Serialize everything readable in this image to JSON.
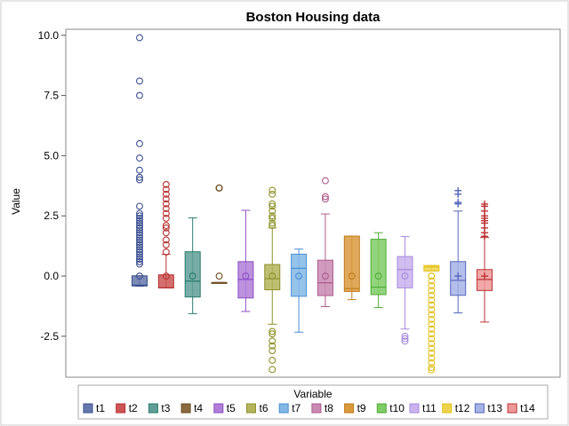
{
  "chart_data": {
    "type": "box",
    "title": "Boston Housing data",
    "ylabel": "Value",
    "xlabel": "",
    "ylim": [
      -4.2,
      10.25
    ],
    "yticks": [
      -2.5,
      0.0,
      2.5,
      5.0,
      7.5,
      10.0
    ],
    "ytick_labels": [
      "-2.5",
      "0.0",
      "2.5",
      "5.0",
      "7.5",
      "10.0"
    ],
    "legend": {
      "title": "Variable",
      "placement": "bottom"
    },
    "series": [
      {
        "name": "t1",
        "color": "#6677aa",
        "stroke": "#3a4f8f",
        "marker": "circle",
        "whisker_low": -0.42,
        "q1": -0.41,
        "median": -0.38,
        "q3": 0.01,
        "whisker_high": 0.01,
        "mean": 0.0,
        "outliers": [
          9.9,
          8.1,
          7.5,
          5.5,
          4.9,
          4.4,
          4.1,
          4.0,
          2.9,
          2.6,
          2.5,
          2.4,
          2.3,
          2.2,
          2.1,
          2.0,
          1.9,
          1.8,
          1.7,
          1.6,
          1.5,
          1.4,
          1.3,
          1.2,
          1.1,
          1.0,
          0.9,
          0.8,
          0.7,
          0.6,
          0.5
        ]
      },
      {
        "name": "t2",
        "color": "#cc5555",
        "stroke": "#b83232",
        "marker": "circle",
        "whisker_low": -0.49,
        "q1": -0.49,
        "median": -0.49,
        "q3": 0.05,
        "whisker_high": 0.9,
        "mean": 0.0,
        "outliers": [
          3.8,
          3.6,
          3.4,
          3.2,
          3.0,
          2.8,
          2.6,
          2.4,
          2.1,
          2.0,
          1.8,
          1.5,
          1.3,
          1.0
        ]
      },
      {
        "name": "t3",
        "color": "#5f9f96",
        "stroke": "#2a7a6e",
        "marker": "circle",
        "whisker_low": -1.56,
        "q1": -0.87,
        "median": -0.21,
        "q3": 1.01,
        "whisker_high": 2.42,
        "mean": 0.0,
        "outliers": []
      },
      {
        "name": "t4",
        "color": "#8a6a3e",
        "stroke": "#6b4c20",
        "marker": "circle",
        "whisker_low": -0.27,
        "q1": -0.27,
        "median": -0.27,
        "q3": -0.27,
        "whisker_high": -0.27,
        "mean": 0.0,
        "outliers": [
          3.66,
          3.66,
          3.66
        ]
      },
      {
        "name": "t5",
        "color": "#b07ed8",
        "stroke": "#8e4fc4",
        "marker": "circle",
        "whisker_low": -1.47,
        "q1": -0.91,
        "median": -0.14,
        "q3": 0.6,
        "whisker_high": 2.73,
        "mean": 0.0,
        "outliers": []
      },
      {
        "name": "t6",
        "color": "#b3b45a",
        "stroke": "#8f9028",
        "marker": "circle",
        "whisker_low": -2.0,
        "q1": -0.57,
        "median": -0.11,
        "q3": 0.48,
        "whisker_high": 2.0,
        "mean": 0.0,
        "outliers": [
          3.56,
          3.4,
          3.0,
          2.9,
          2.7,
          2.5,
          2.4,
          2.2,
          2.1,
          -2.3,
          -2.4,
          -2.7,
          -2.9,
          -3.1,
          -3.5,
          -3.88
        ]
      },
      {
        "name": "t7",
        "color": "#82b8e6",
        "stroke": "#4a8fd1",
        "marker": "circle",
        "whisker_low": -2.33,
        "q1": -0.84,
        "median": 0.32,
        "q3": 0.91,
        "whisker_high": 1.12,
        "mean": 0.0,
        "outliers": []
      },
      {
        "name": "t8",
        "color": "#c989b3",
        "stroke": "#ad5a8d",
        "marker": "circle",
        "whisker_low": -1.27,
        "q1": -0.81,
        "median": -0.28,
        "q3": 0.66,
        "whisker_high": 2.58,
        "mean": 0.0,
        "outliers": [
          3.96,
          3.3,
          3.2
        ]
      },
      {
        "name": "t9",
        "color": "#d99a3e",
        "stroke": "#c07a1a",
        "marker": "circle",
        "whisker_low": -0.98,
        "q1": -0.64,
        "median": -0.52,
        "q3": 1.66,
        "whisker_high": 1.66,
        "mean": 0.0,
        "outliers": []
      },
      {
        "name": "t10",
        "color": "#7fcc66",
        "stroke": "#4faa35",
        "marker": "circle",
        "whisker_low": -1.31,
        "q1": -0.77,
        "median": -0.46,
        "q3": 1.53,
        "whisker_high": 1.8,
        "mean": 0.0,
        "outliers": []
      },
      {
        "name": "t11",
        "color": "#c9b3ee",
        "stroke": "#a78adc",
        "marker": "circle",
        "whisker_low": -2.2,
        "q1": -0.49,
        "median": 0.27,
        "q3": 0.81,
        "whisker_high": 1.64,
        "mean": 0.0,
        "outliers": [
          -2.5,
          -2.6,
          -2.7
        ]
      },
      {
        "name": "t12",
        "color": "#eed44a",
        "stroke": "#e0c020",
        "marker": "circle",
        "whisker_low": 0.21,
        "q1": 0.21,
        "median": 0.38,
        "q3": 0.44,
        "whisker_high": 0.44,
        "mean": 0.0,
        "outliers": [
          0.0,
          -0.2,
          -0.4,
          -0.6,
          -0.8,
          -1.0,
          -1.2,
          -1.4,
          -1.6,
          -1.8,
          -2.0,
          -2.2,
          -2.4,
          -2.6,
          -2.8,
          -3.0,
          -3.2,
          -3.4,
          -3.6,
          -3.8,
          -3.9
        ]
      },
      {
        "name": "t13",
        "color": "#a6b3e6",
        "stroke": "#5566bb",
        "marker": "plus",
        "whisker_low": -1.53,
        "q1": -0.8,
        "median": -0.18,
        "q3": 0.6,
        "whisker_high": 2.7,
        "mean": 0.0,
        "outliers": [
          3.55,
          3.4,
          3.06,
          3.0
        ]
      },
      {
        "name": "t14",
        "color": "#ee9999",
        "stroke": "#bb3333",
        "marker": "plus",
        "whisker_low": -1.91,
        "q1": -0.6,
        "median": -0.14,
        "q3": 0.27,
        "whisker_high": 1.6,
        "mean": 0.0,
        "outliers": [
          2.99,
          2.9,
          2.7,
          2.5,
          2.4,
          2.3,
          2.2,
          2.0,
          1.8,
          1.65
        ]
      }
    ]
  }
}
